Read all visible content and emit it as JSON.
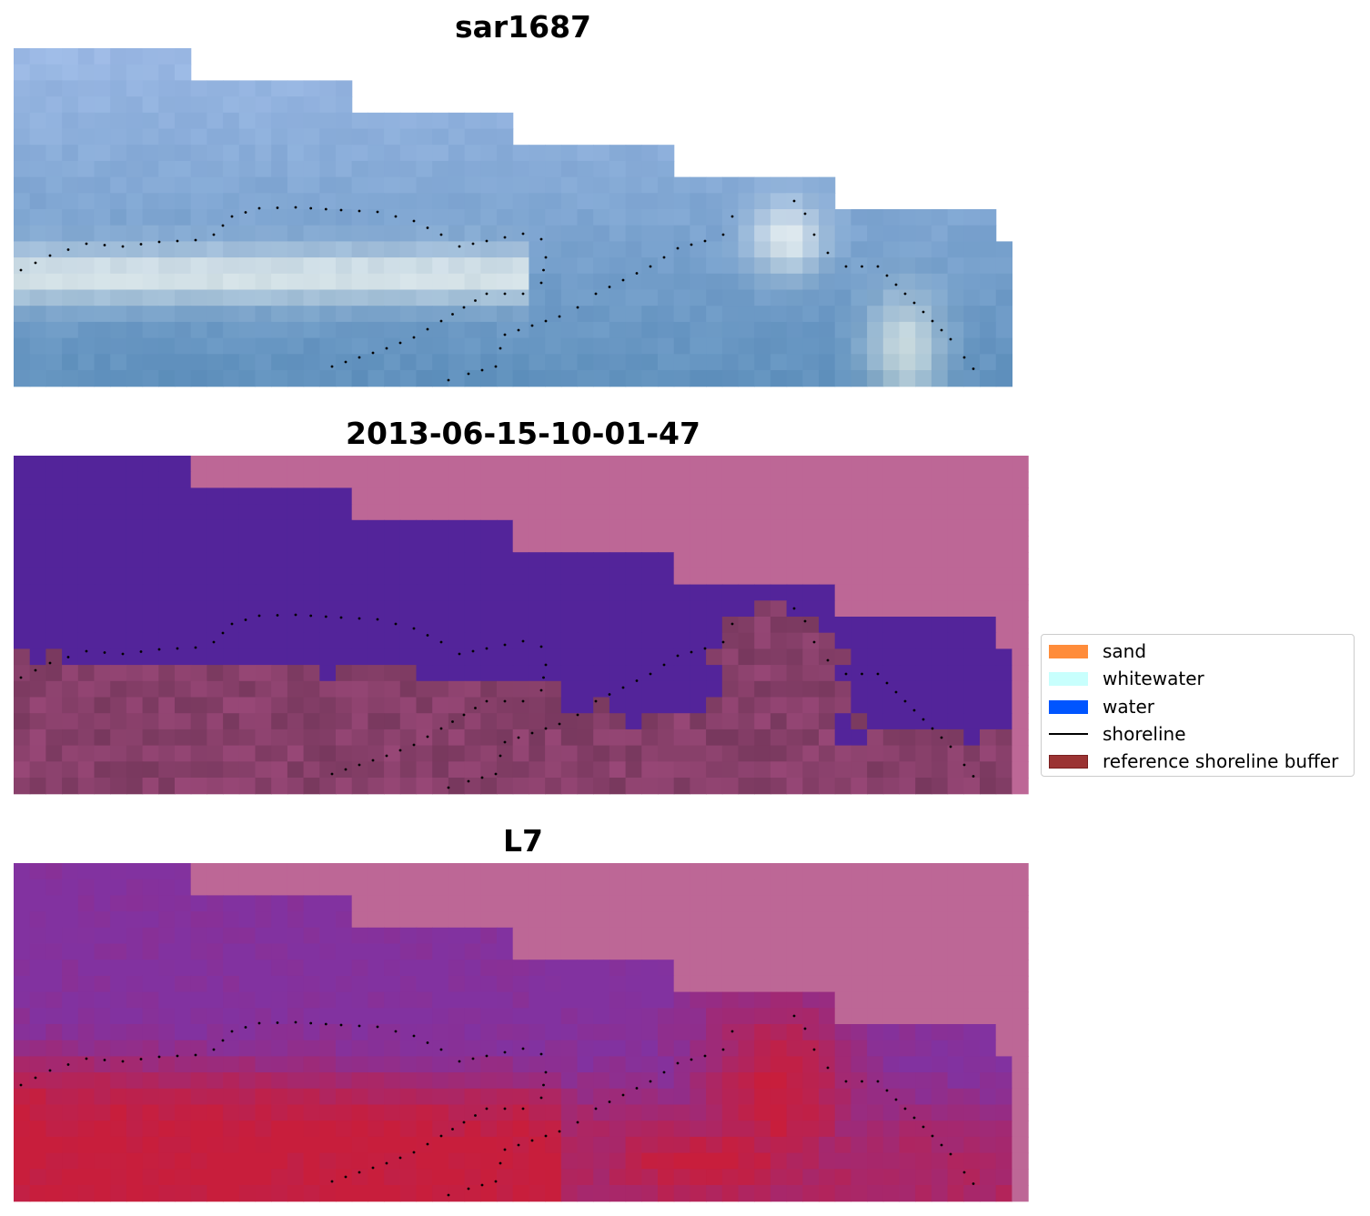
{
  "panels": [
    {
      "title": "sar1687",
      "style": "rgb"
    },
    {
      "title": "2013-06-15-10-01-47",
      "style": "classified"
    },
    {
      "title": "L7",
      "style": "index"
    }
  ],
  "legend": {
    "items": [
      {
        "label": "sand",
        "kind": "patch",
        "color": "#ff8c3a"
      },
      {
        "label": "whitewater",
        "kind": "patch",
        "color": "#c8fffd"
      },
      {
        "label": "water",
        "kind": "patch",
        "color": "#0055ff"
      },
      {
        "label": "shoreline",
        "kind": "line",
        "color": "#000000"
      },
      {
        "label": "reference shoreline buffer",
        "kind": "patch",
        "color": "#9b3333",
        "edge": "#7a1f1f"
      }
    ]
  },
  "colors": {
    "nodata": "#bd6796",
    "water_class": "#53249a",
    "shoreline_dots": "#000000"
  }
}
